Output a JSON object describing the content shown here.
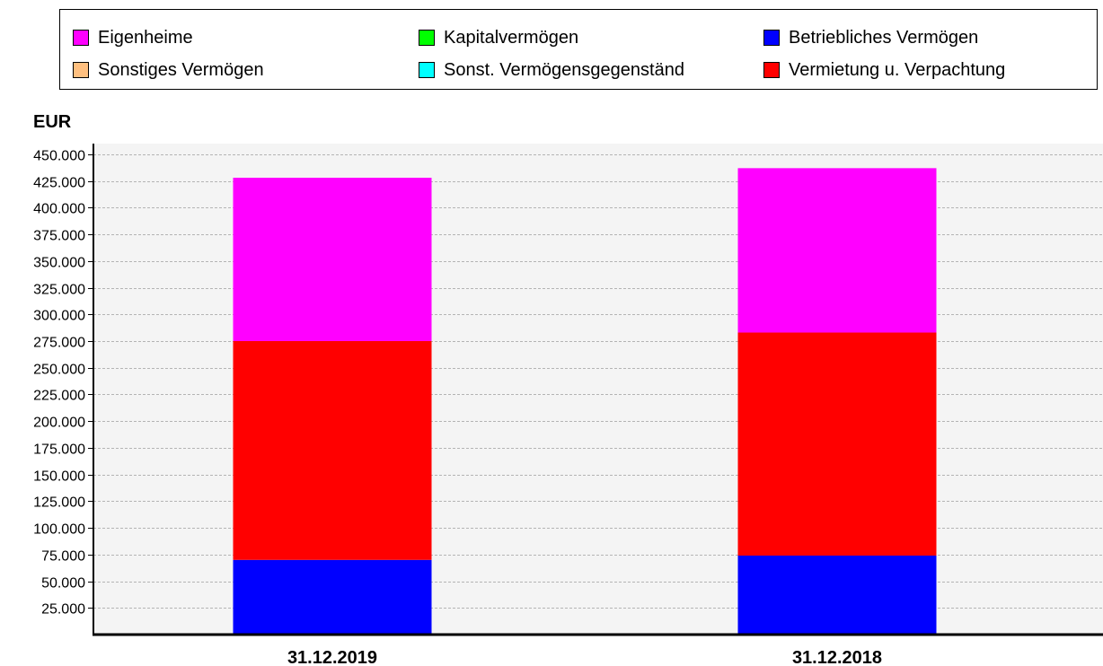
{
  "chart_data": {
    "type": "bar",
    "stacked": true,
    "ylabel": "EUR",
    "categories": [
      "31.12.2019",
      "31.12.2018"
    ],
    "ylim": [
      0,
      460000
    ],
    "yticks": [
      {
        "value": 25000,
        "label": "25.000"
      },
      {
        "value": 50000,
        "label": "50.000"
      },
      {
        "value": 75000,
        "label": "75.000"
      },
      {
        "value": 100000,
        "label": "100.000"
      },
      {
        "value": 125000,
        "label": "125.000"
      },
      {
        "value": 150000,
        "label": "150.000"
      },
      {
        "value": 175000,
        "label": "175.000"
      },
      {
        "value": 200000,
        "label": "200.000"
      },
      {
        "value": 225000,
        "label": "225.000"
      },
      {
        "value": 250000,
        "label": "250.000"
      },
      {
        "value": 275000,
        "label": "275.000"
      },
      {
        "value": 300000,
        "label": "300.000"
      },
      {
        "value": 325000,
        "label": "325.000"
      },
      {
        "value": 350000,
        "label": "350.000"
      },
      {
        "value": 375000,
        "label": "375.000"
      },
      {
        "value": 400000,
        "label": "400.000"
      },
      {
        "value": 425000,
        "label": "425.000"
      },
      {
        "value": 450000,
        "label": "450.000"
      }
    ],
    "grid": true,
    "legend_position": "top",
    "series": [
      {
        "name": "Betriebliches Vermögen",
        "color": "#0000ff",
        "values": [
          70000,
          74000
        ]
      },
      {
        "name": "Vermietung u. Verpachtung",
        "color": "#ff0000",
        "values": [
          205000,
          209000
        ]
      },
      {
        "name": "Eigenheime",
        "color": "#ff00ff",
        "values": [
          153000,
          154000
        ]
      },
      {
        "name": "Kapitalvermögen",
        "color": "#00ff00",
        "values": [
          0,
          0
        ]
      },
      {
        "name": "Sonstiges Vermögen",
        "color": "#ffc080",
        "values": [
          0,
          0
        ]
      },
      {
        "name": "Sonst. Vermögensgegenständ",
        "color": "#00ffff",
        "values": [
          0,
          0
        ]
      }
    ],
    "legend": [
      {
        "label": "Eigenheime",
        "color": "#ff00ff"
      },
      {
        "label": "Kapitalvermögen",
        "color": "#00ff00"
      },
      {
        "label": "Betriebliches Vermögen",
        "color": "#0000ff"
      },
      {
        "label": "Sonstiges Vermögen",
        "color": "#ffc080"
      },
      {
        "label": "Sonst. Vermögensgegenständ",
        "color": "#00ffff"
      },
      {
        "label": "Vermietung u. Verpachtung",
        "color": "#ff0000"
      }
    ]
  }
}
